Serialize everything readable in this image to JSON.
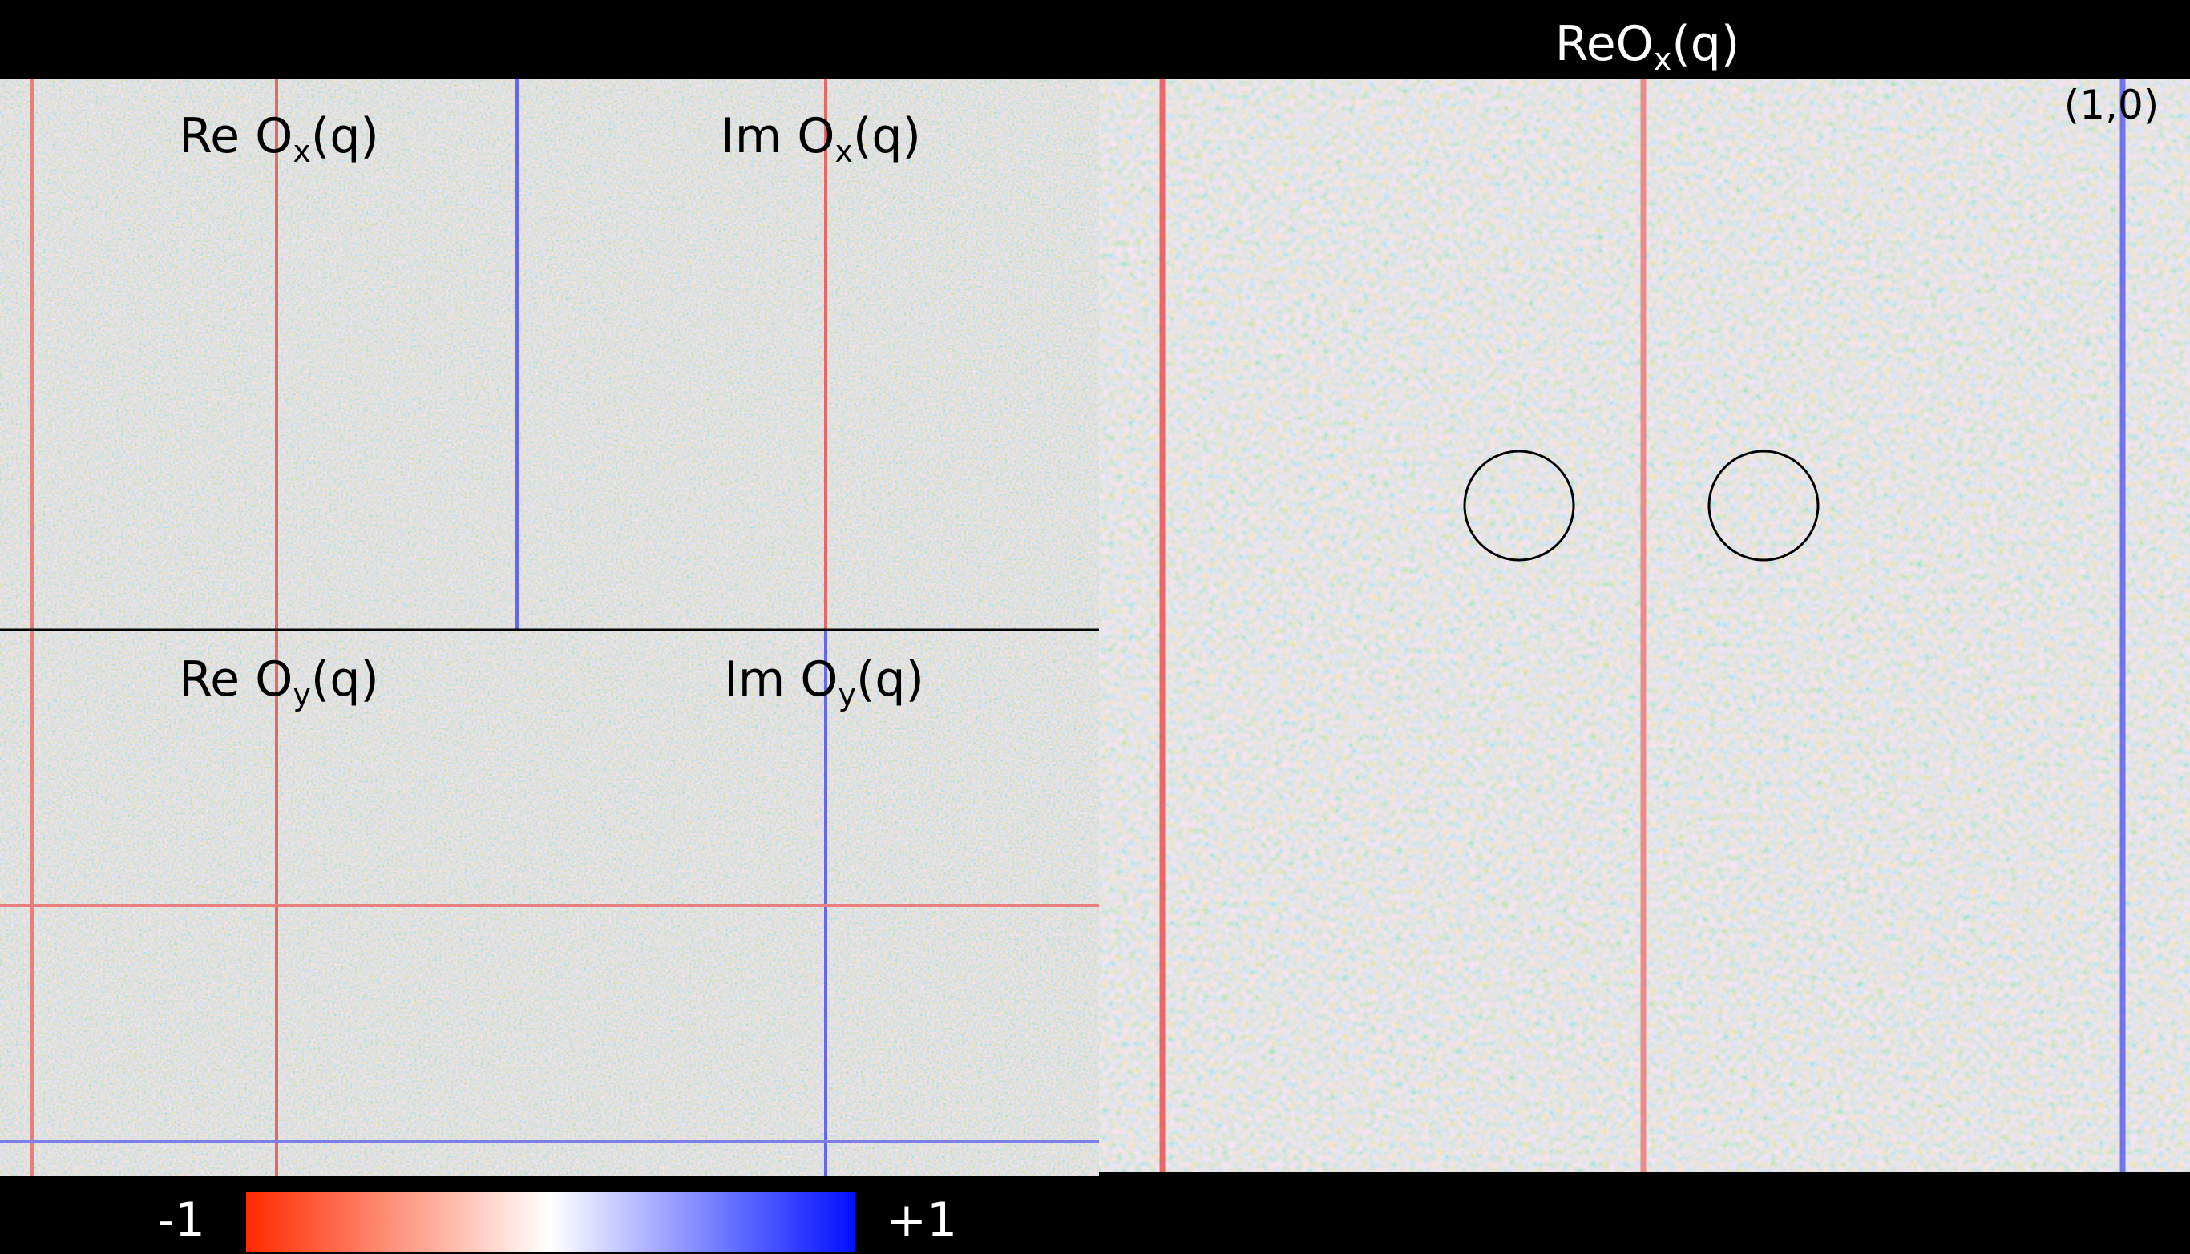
{
  "title": {
    "base": "ReO",
    "sub": "x",
    "tail": "(q)"
  },
  "panels": [
    {
      "base": "Re O",
      "sub": "x",
      "tail": "(q)"
    },
    {
      "base": "Im O",
      "sub": "x",
      "tail": "(q)"
    },
    {
      "base": "Re O",
      "sub": "y",
      "tail": "(q)"
    },
    {
      "base": "Im O",
      "sub": "y",
      "tail": "(q)"
    }
  ],
  "zoom_label": "(1,0)",
  "colorbar": {
    "min_label": "-1",
    "max_label": "+1"
  }
}
